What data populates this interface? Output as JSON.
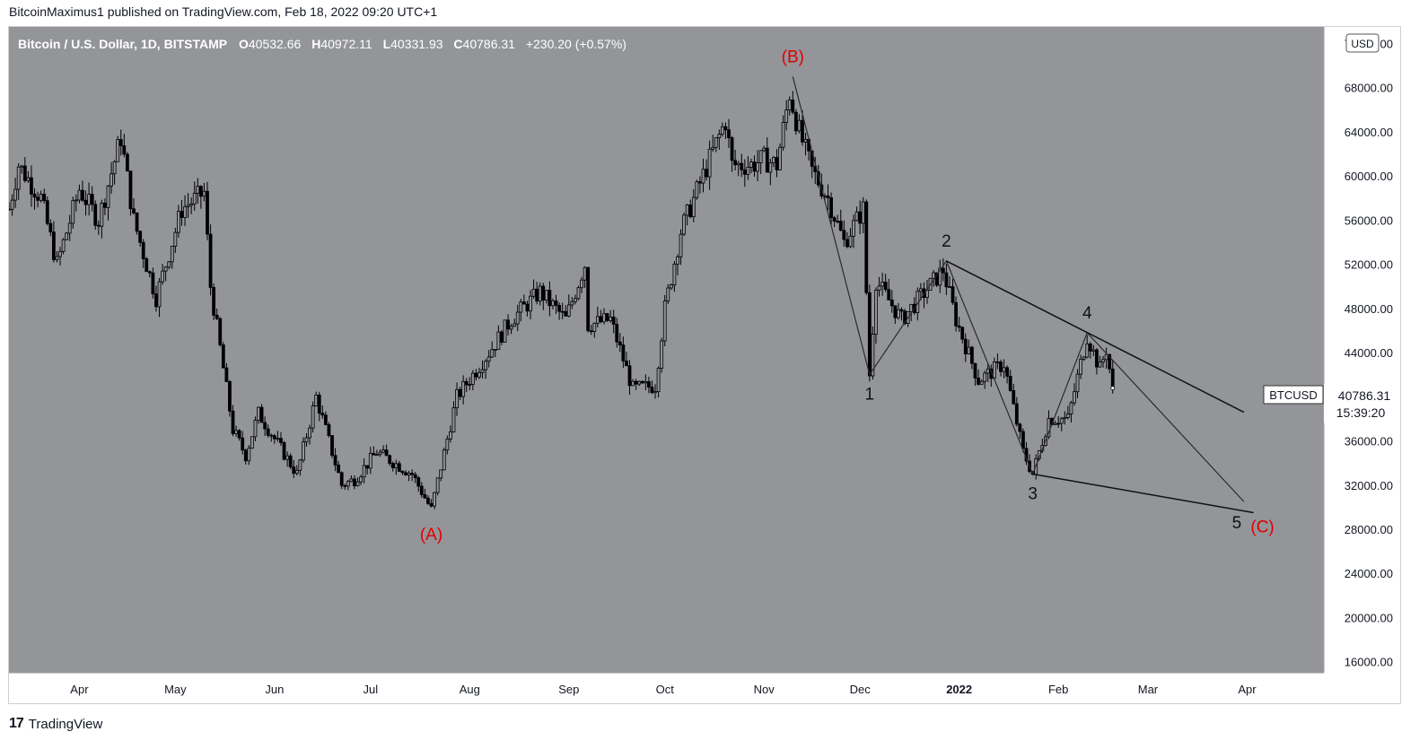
{
  "header": {
    "published_line": "BitcoinMaximus1 published on TradingView.com, Feb 18, 2022 09:20 UTC+1"
  },
  "footer": {
    "brand": "TradingView",
    "logo_glyph": "17"
  },
  "legend": {
    "symbol": "Bitcoin / U.S. Dollar, 1D, BITSTAMP",
    "o_label": "O",
    "o_value": "40532.66",
    "h_label": "H",
    "h_value": "40972.11",
    "l_label": "L",
    "l_value": "40331.93",
    "c_label": "C",
    "c_value": "40786.31",
    "change": "+230.20 (+0.57%)"
  },
  "currency_badge": "USD",
  "price_tag": {
    "symbol": "BTCUSD",
    "price": "40786.31",
    "countdown": "15:39:20"
  },
  "colors": {
    "plot_bg": "#939599",
    "axis_bg": "#ffffff",
    "candle": "#000000",
    "wave_red": "#e00000",
    "wave_black": "#111111",
    "axis_text": "#131722"
  },
  "chart_data": {
    "type": "candlestick",
    "title": "Bitcoin / U.S. Dollar, 1D, BITSTAMP",
    "x_ticks": [
      "Apr",
      "May",
      "Jun",
      "Jul",
      "Aug",
      "Sep",
      "Oct",
      "Nov",
      "Dec",
      "2022",
      "Feb",
      "Mar",
      "Apr"
    ],
    "x_tick_dates": [
      "2021-04-01",
      "2021-05-01",
      "2021-06-01",
      "2021-07-01",
      "2021-08-01",
      "2021-09-01",
      "2021-10-01",
      "2021-11-01",
      "2021-12-01",
      "2022-01-01",
      "2022-02-01",
      "2022-03-01",
      "2022-04-01"
    ],
    "x_range": [
      "2021-03-10",
      "2022-04-25"
    ],
    "y_ticks": [
      16000,
      20000,
      24000,
      28000,
      32000,
      36000,
      40000,
      44000,
      48000,
      52000,
      56000,
      60000,
      64000,
      68000,
      72000
    ],
    "y_tick_labels": [
      "16000.00",
      "20000.00",
      "24000.00",
      "28000.00",
      "32000.00",
      "36000.00",
      "40000.00",
      "44000.00",
      "48000.00",
      "52000.00",
      "56000.00",
      "60000.00",
      "64000.00",
      "68000.00",
      "72000.00"
    ],
    "ylim": [
      15000,
      73500
    ],
    "grid": false,
    "price_path": [
      [
        "2021-03-10",
        57000
      ],
      [
        "2021-03-13",
        61000
      ],
      [
        "2021-03-20",
        58000
      ],
      [
        "2021-03-25",
        52000
      ],
      [
        "2021-04-01",
        58800
      ],
      [
        "2021-04-07",
        56000
      ],
      [
        "2021-04-14",
        63500
      ],
      [
        "2021-04-18",
        56000
      ],
      [
        "2021-04-25",
        49000
      ],
      [
        "2021-05-03",
        57000
      ],
      [
        "2021-05-10",
        58500
      ],
      [
        "2021-05-12",
        50000
      ],
      [
        "2021-05-19",
        37000
      ],
      [
        "2021-05-23",
        34700
      ],
      [
        "2021-05-27",
        38500
      ],
      [
        "2021-06-08",
        33000
      ],
      [
        "2021-06-14",
        40000
      ],
      [
        "2021-06-22",
        32000
      ],
      [
        "2021-06-26",
        32500
      ],
      [
        "2021-07-03",
        35000
      ],
      [
        "2021-07-14",
        33000
      ],
      [
        "2021-07-20",
        29800
      ],
      [
        "2021-07-28",
        40000
      ],
      [
        "2021-08-07",
        44000
      ],
      [
        "2021-08-14",
        47000
      ],
      [
        "2021-08-23",
        49500
      ],
      [
        "2021-08-31",
        47000
      ],
      [
        "2021-09-06",
        52000
      ],
      [
        "2021-09-07",
        46500
      ],
      [
        "2021-09-14",
        47000
      ],
      [
        "2021-09-21",
        40700
      ],
      [
        "2021-09-28",
        41000
      ],
      [
        "2021-10-01",
        48000
      ],
      [
        "2021-10-06",
        55000
      ],
      [
        "2021-10-15",
        61500
      ],
      [
        "2021-10-20",
        65000
      ],
      [
        "2021-10-22",
        61000
      ],
      [
        "2021-10-28",
        61000
      ],
      [
        "2021-11-01",
        61500
      ],
      [
        "2021-11-05",
        61000
      ],
      [
        "2021-11-09",
        67500
      ],
      [
        "2021-11-12",
        64000
      ],
      [
        "2021-11-16",
        60500
      ],
      [
        "2021-11-21",
        58000
      ],
      [
        "2021-11-26",
        54000
      ],
      [
        "2021-12-02",
        57000
      ],
      [
        "2021-12-04",
        42000
      ],
      [
        "2021-12-06",
        50500
      ],
      [
        "2021-12-14",
        47000
      ],
      [
        "2021-12-27",
        51500
      ],
      [
        "2021-12-31",
        47000
      ],
      [
        "2022-01-07",
        41500
      ],
      [
        "2022-01-15",
        43000
      ],
      [
        "2022-01-21",
        35000
      ],
      [
        "2022-01-24",
        33000
      ],
      [
        "2022-01-29",
        38000
      ],
      [
        "2022-02-04",
        38000
      ],
      [
        "2022-02-10",
        45500
      ],
      [
        "2022-02-14",
        42500
      ],
      [
        "2022-02-16",
        44300
      ],
      [
        "2022-02-18",
        40786
      ]
    ],
    "annotations": [
      {
        "text": "(A)",
        "color": "red",
        "date": "2021-07-20",
        "price": 29300
      },
      {
        "text": "(B)",
        "color": "red",
        "date": "2021-11-10",
        "price": 69000
      },
      {
        "text": "1",
        "color": "black",
        "date": "2021-12-04",
        "price": 42000
      },
      {
        "text": "2",
        "color": "black",
        "date": "2021-12-28",
        "price": 52300
      },
      {
        "text": "3",
        "color": "black",
        "date": "2022-01-24",
        "price": 33000
      },
      {
        "text": "4",
        "color": "black",
        "date": "2022-02-10",
        "price": 45800
      },
      {
        "text": "5",
        "color": "black",
        "date": "2022-03-31",
        "price": 30500
      },
      {
        "text": "(C)",
        "color": "red",
        "date": "2022-04-03",
        "price": 29500
      }
    ],
    "wave_path": [
      [
        "2021-11-10",
        69000
      ],
      [
        "2021-12-04",
        42000
      ],
      [
        "2021-12-28",
        52300
      ],
      [
        "2022-01-24",
        33000
      ],
      [
        "2022-02-10",
        45800
      ],
      [
        "2022-03-31",
        30500
      ]
    ],
    "trendlines": [
      {
        "from": [
          "2021-12-28",
          52300
        ],
        "to": [
          "2022-03-31",
          38600
        ]
      },
      {
        "from": [
          "2022-01-24",
          33000
        ],
        "to": [
          "2022-04-03",
          29500
        ]
      }
    ],
    "last_price": 40786.31
  }
}
